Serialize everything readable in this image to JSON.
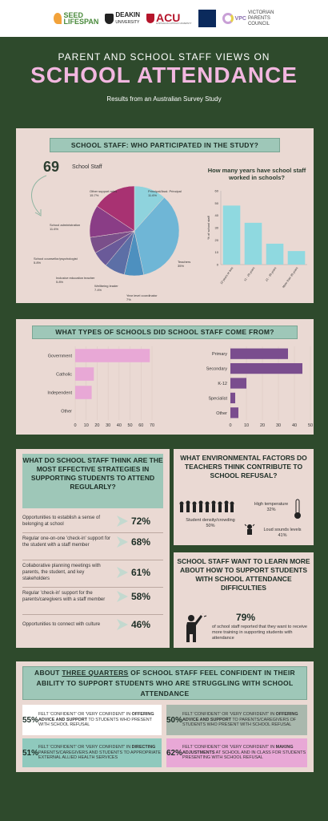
{
  "logos": {
    "seed": [
      "SEED",
      "LIFESPAN"
    ],
    "deakin": [
      "DEAKIN",
      "UNIVERSITY"
    ],
    "acu": "ACU",
    "acu_sub": "AUSTRALIAN CATHOLIC UNIVERSITY",
    "vpc": [
      "VICTORIAN",
      "PARENTS",
      "COUNCIL"
    ],
    "vpc_letters": "VPC"
  },
  "header": {
    "subtitle": "PARENT AND SCHOOL STAFF VIEWS ON",
    "title": "SCHOOL ATTENDANCE",
    "study": "Results from an Australian Survey Study"
  },
  "participants": {
    "banner": "SCHOOL STAFF: WHO PARTICIPATED IN THE STUDY?",
    "count": "69",
    "count_label": "School Staff",
    "years_title": "How many years have school staff worked in schools?",
    "colors": {
      "pie": [
        "#8fd3dd",
        "#6fb6d6",
        "#4d90bf",
        "#5c6fa6",
        "#6a5a99",
        "#7a4f8a",
        "#8a3d86",
        "#a83272"
      ],
      "bar": "#8fd9e0"
    }
  },
  "school_types": {
    "banner": "WHAT TYPES OF SCHOOLS DID SCHOOL STAFF COME FROM?",
    "colors": {
      "left": "#e8a8d6",
      "right": "#7a4d8e"
    }
  },
  "strategies": {
    "question": "WHAT DO SCHOOL STAFF THINK ARE THE MOST EFFECTIVE STRATEGIES IN SUPPORTING STUDENTS TO ATTEND REGULARLY?",
    "items": [
      {
        "text": "Opportunities to establish a sense of belonging at school",
        "pct": "72%"
      },
      {
        "text": "Regular one-on-one 'check-in' support for the student with a staff member",
        "pct": "68%"
      },
      {
        "text": "Collaborative planning meetings with parents, the student, and key stakeholders",
        "pct": "61%"
      },
      {
        "text": "Regular 'check-in' support for the parents/caregivers with a staff member",
        "pct": "58%"
      },
      {
        "text": "Opportunities to connect with culture",
        "pct": "46%"
      }
    ]
  },
  "environment": {
    "question": "WHAT ENVIRONMENTAL FACTORS DO TEACHERS THINK CONTRIBUTE TO SCHOOL REFUSAL?",
    "density_label": "Student density/crowding",
    "density_pct": "50%",
    "temp_label": "High temperature",
    "temp_pct": "32%",
    "noise_label": "Loud sounds levels",
    "noise_pct": "41%"
  },
  "training": {
    "question": "SCHOOL STAFF WANT TO LEARN MORE ABOUT HOW TO SUPPORT STUDENTS WITH SCHOOL ATTENDANCE DIFFICULTIES",
    "pct": "79%",
    "text": "of school staff reported that they want to receive more training in supporting students with attendance"
  },
  "confidence": {
    "banner_pre": "ABOUT",
    "banner_emph": "THREE QUARTERS",
    "banner_post": "OF SCHOOL STAFF FEEL CONFIDENT IN THEIR ABILITY TO SUPPORT STUDENTS WHO ARE STRUGGLING WITH SCHOOL ATTENDANCE",
    "boxes": [
      {
        "pct": "55%",
        "pre": "FELT 'CONFIDENT' OR 'VERY CONFIDENT' IN",
        "bold": "OFFERING ADVICE AND SUPPORT",
        "post": "TO STUDENTS WHO PRESENT WITH SCHOOL REFUSAL",
        "color": "#ffffff"
      },
      {
        "pct": "50%",
        "pre": "FELT 'CONFIDENT' OR 'VERY CONFIDENT' IN",
        "bold": "OFFERING ADVICE AND SUPPORT",
        "post": "TO PARENTS/CAREGIVERS OF STUDENTS WHO PRESENT WITH SCHOOL REFUSAL",
        "color": "#a9b8ad"
      },
      {
        "pct": "51%",
        "pre": "FELT 'CONFIDENT' OR 'VERY CONFIDENT' IN",
        "bold": "DIRECTING",
        "post": "PARENTS/CAREGIVERS AND STUDENTS TO APPROPRIATE EXTERNAL ALLIED HEALTH SERVICES",
        "color": "#8fc9bd"
      },
      {
        "pct": "62%",
        "pre": "FELT 'CONFIDENT' OR 'VERY CONFIDENT' IN",
        "bold": "MAKING ADJUSTMENTS",
        "post": "AT SCHOOL AND IN CLASS FOR STUDENTS PRESENTING WITH SCHOOL REFUSAL",
        "color": "#e8a8d6"
      }
    ]
  },
  "chart_data": [
    {
      "type": "pie",
      "labels": [
        "Principal/Asst. Principal",
        "Teachers",
        "Year level coordinator",
        "Wellbeing leader",
        "Inclusive education teacher",
        "School counsellor/psychologist",
        "School administration",
        "Other support roles"
      ],
      "values": [
        11.6,
        35,
        7,
        7.4,
        5.8,
        5.8,
        11.6,
        15.7
      ],
      "value_labels": [
        "11.6%",
        "35%",
        "7%",
        "7.4%",
        "5.8%",
        "5.8%",
        "11.6%",
        "15.7%"
      ]
    },
    {
      "type": "bar",
      "categories": [
        "10 years or less",
        "11 - 20 years",
        "21 - 30 years",
        "More than 30 years"
      ],
      "values": [
        48,
        34,
        17,
        11
      ],
      "ylabel": "% of school staff",
      "ylim": [
        0,
        60
      ],
      "yticks": [
        0,
        10,
        20,
        30,
        40,
        50,
        60
      ]
    },
    {
      "type": "bar",
      "orientation": "horizontal",
      "categories": [
        "Government",
        "Catholic",
        "Independent",
        "Other"
      ],
      "values": [
        68,
        17,
        15,
        0
      ],
      "xlim": [
        0,
        70
      ],
      "xticks": [
        0,
        10,
        20,
        30,
        40,
        50,
        60,
        70
      ]
    },
    {
      "type": "bar",
      "orientation": "horizontal",
      "categories": [
        "Primary",
        "Secondary",
        "K-12",
        "Specialist",
        "Other"
      ],
      "values": [
        36,
        45,
        10,
        3,
        5
      ],
      "xlim": [
        0,
        50
      ],
      "xticks": [
        0,
        10,
        20,
        30,
        40,
        50
      ]
    }
  ]
}
